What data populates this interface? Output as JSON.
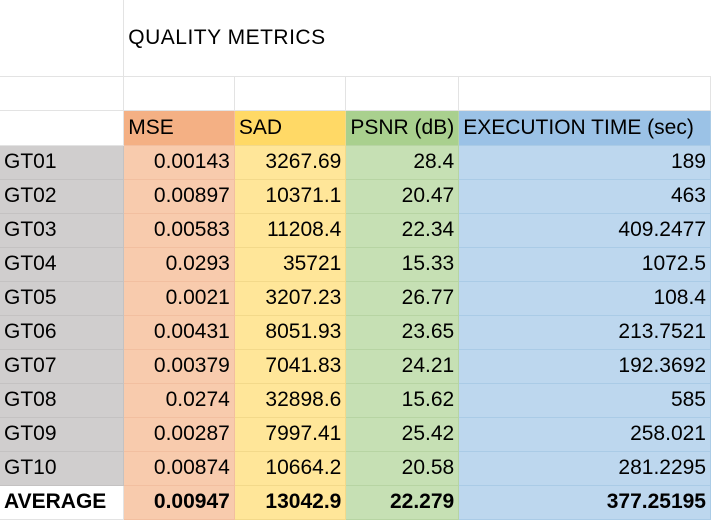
{
  "title": "QUALITY METRICS",
  "headers": {
    "mse": "MSE",
    "sad": "SAD",
    "psnr": "PSNR (dB)",
    "exec": "EXECUTION TIME (sec)"
  },
  "rows": [
    {
      "label": "GT01",
      "mse": "0.00143",
      "sad": "3267.69",
      "psnr": "28.4",
      "exec": "189"
    },
    {
      "label": "GT02",
      "mse": "0.00897",
      "sad": "10371.1",
      "psnr": "20.47",
      "exec": "463"
    },
    {
      "label": "GT03",
      "mse": "0.00583",
      "sad": "11208.4",
      "psnr": "22.34",
      "exec": "409.2477"
    },
    {
      "label": "GT04",
      "mse": "0.0293",
      "sad": "35721",
      "psnr": "15.33",
      "exec": "1072.5"
    },
    {
      "label": "GT05",
      "mse": "0.0021",
      "sad": "3207.23",
      "psnr": "26.77",
      "exec": "108.4"
    },
    {
      "label": "GT06",
      "mse": "0.00431",
      "sad": "8051.93",
      "psnr": "23.65",
      "exec": "213.7521"
    },
    {
      "label": "GT07",
      "mse": "0.00379",
      "sad": "7041.83",
      "psnr": "24.21",
      "exec": "192.3692"
    },
    {
      "label": "GT08",
      "mse": "0.0274",
      "sad": "32898.6",
      "psnr": "15.62",
      "exec": "585"
    },
    {
      "label": "GT09",
      "mse": "0.00287",
      "sad": "7997.41",
      "psnr": "25.42",
      "exec": "258.021"
    },
    {
      "label": "GT10",
      "mse": "0.00874",
      "sad": "10664.2",
      "psnr": "20.58",
      "exec": "281.2295"
    }
  ],
  "average": {
    "label": "AVERAGE",
    "mse": "0.00947",
    "sad": "13042.9",
    "psnr": "22.279",
    "exec": "377.25195"
  },
  "colors": {
    "mse_header": "#f4b084",
    "mse_cells": "#f8cbad",
    "sad_header": "#ffd966",
    "sad_cells": "#ffe699",
    "psnr_header": "#a9d08e",
    "psnr_cells": "#c6e0b4",
    "exec_header": "#9bc2e6",
    "exec_cells": "#bdd7ee",
    "label_column": "#d0cece"
  }
}
